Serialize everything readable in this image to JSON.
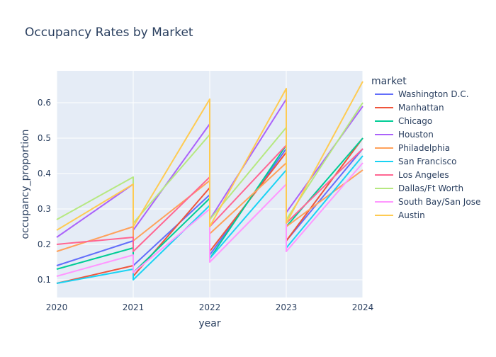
{
  "chart_data": {
    "type": "line",
    "title": "Occupancy Rates by Market",
    "xlabel": "year",
    "ylabel": "occupancy_proportion",
    "x_ticks": [
      "2020",
      "2021",
      "2022",
      "2023",
      "2024"
    ],
    "y_ticks": [
      "0.1",
      "0.2",
      "0.3",
      "0.4",
      "0.5",
      "0.6"
    ],
    "xlim": [
      2020,
      2024
    ],
    "ylim": [
      0.05,
      0.69
    ],
    "grid": true,
    "legend_title": "market",
    "legend_position": "right",
    "series": [
      {
        "name": "Washington D.C.",
        "color": "#636efa",
        "points": [
          [
            2020,
            0.14
          ],
          [
            2021,
            0.21
          ],
          [
            2021,
            0.14
          ],
          [
            2022,
            0.34
          ],
          [
            2022,
            0.17
          ],
          [
            2023,
            0.47
          ],
          [
            2023,
            0.21
          ],
          [
            2024,
            0.47
          ]
        ]
      },
      {
        "name": "Manhattan",
        "color": "#EF553B",
        "points": [
          [
            2020,
            0.09
          ],
          [
            2021,
            0.14
          ],
          [
            2021,
            0.11
          ],
          [
            2022,
            0.36
          ],
          [
            2022,
            0.18
          ],
          [
            2023,
            0.46
          ],
          [
            2023,
            0.21
          ],
          [
            2024,
            0.5
          ]
        ]
      },
      {
        "name": "Chicago",
        "color": "#00cc96",
        "points": [
          [
            2020,
            0.13
          ],
          [
            2021,
            0.19
          ],
          [
            2021,
            0.12
          ],
          [
            2022,
            0.33
          ],
          [
            2022,
            0.16
          ],
          [
            2023,
            0.48
          ],
          [
            2023,
            0.25
          ],
          [
            2024,
            0.5
          ]
        ]
      },
      {
        "name": "Houston",
        "color": "#ab63fa",
        "points": [
          [
            2020,
            0.22
          ],
          [
            2021,
            0.37
          ],
          [
            2021,
            0.24
          ],
          [
            2022,
            0.54
          ],
          [
            2022,
            0.27
          ],
          [
            2023,
            0.61
          ],
          [
            2023,
            0.29
          ],
          [
            2024,
            0.59
          ]
        ]
      },
      {
        "name": "Philadelphia",
        "color": "#FFA15A",
        "points": [
          [
            2020,
            0.18
          ],
          [
            2021,
            0.25
          ],
          [
            2021,
            0.21
          ],
          [
            2022,
            0.38
          ],
          [
            2022,
            0.23
          ],
          [
            2023,
            0.43
          ],
          [
            2023,
            0.25
          ],
          [
            2024,
            0.41
          ]
        ]
      },
      {
        "name": "San Francisco",
        "color": "#19d3f3",
        "points": [
          [
            2020,
            0.09
          ],
          [
            2021,
            0.13
          ],
          [
            2021,
            0.1
          ],
          [
            2022,
            0.31
          ],
          [
            2022,
            0.16
          ],
          [
            2023,
            0.41
          ],
          [
            2023,
            0.19
          ],
          [
            2024,
            0.45
          ]
        ]
      },
      {
        "name": "Los Angeles",
        "color": "#FF6692",
        "points": [
          [
            2020,
            0.2
          ],
          [
            2021,
            0.22
          ],
          [
            2021,
            0.18
          ],
          [
            2022,
            0.39
          ],
          [
            2022,
            0.25
          ],
          [
            2023,
            0.48
          ],
          [
            2023,
            0.26
          ],
          [
            2024,
            0.47
          ]
        ]
      },
      {
        "name": "Dallas/Ft Worth",
        "color": "#B6E880",
        "points": [
          [
            2020,
            0.27
          ],
          [
            2021,
            0.39
          ],
          [
            2021,
            0.26
          ],
          [
            2022,
            0.51
          ],
          [
            2022,
            0.27
          ],
          [
            2023,
            0.53
          ],
          [
            2023,
            0.27
          ],
          [
            2024,
            0.6
          ]
        ]
      },
      {
        "name": "South Bay/San Jose",
        "color": "#FF97FF",
        "points": [
          [
            2020,
            0.11
          ],
          [
            2021,
            0.17
          ],
          [
            2021,
            0.12
          ],
          [
            2022,
            0.3
          ],
          [
            2022,
            0.15
          ],
          [
            2023,
            0.37
          ],
          [
            2023,
            0.18
          ],
          [
            2024,
            0.43
          ]
        ]
      },
      {
        "name": "Austin",
        "color": "#FECB52",
        "points": [
          [
            2020,
            0.24
          ],
          [
            2021,
            0.37
          ],
          [
            2021,
            0.25
          ],
          [
            2022,
            0.61
          ],
          [
            2022,
            0.25
          ],
          [
            2023,
            0.64
          ],
          [
            2023,
            0.26
          ],
          [
            2024,
            0.66
          ]
        ]
      }
    ]
  }
}
